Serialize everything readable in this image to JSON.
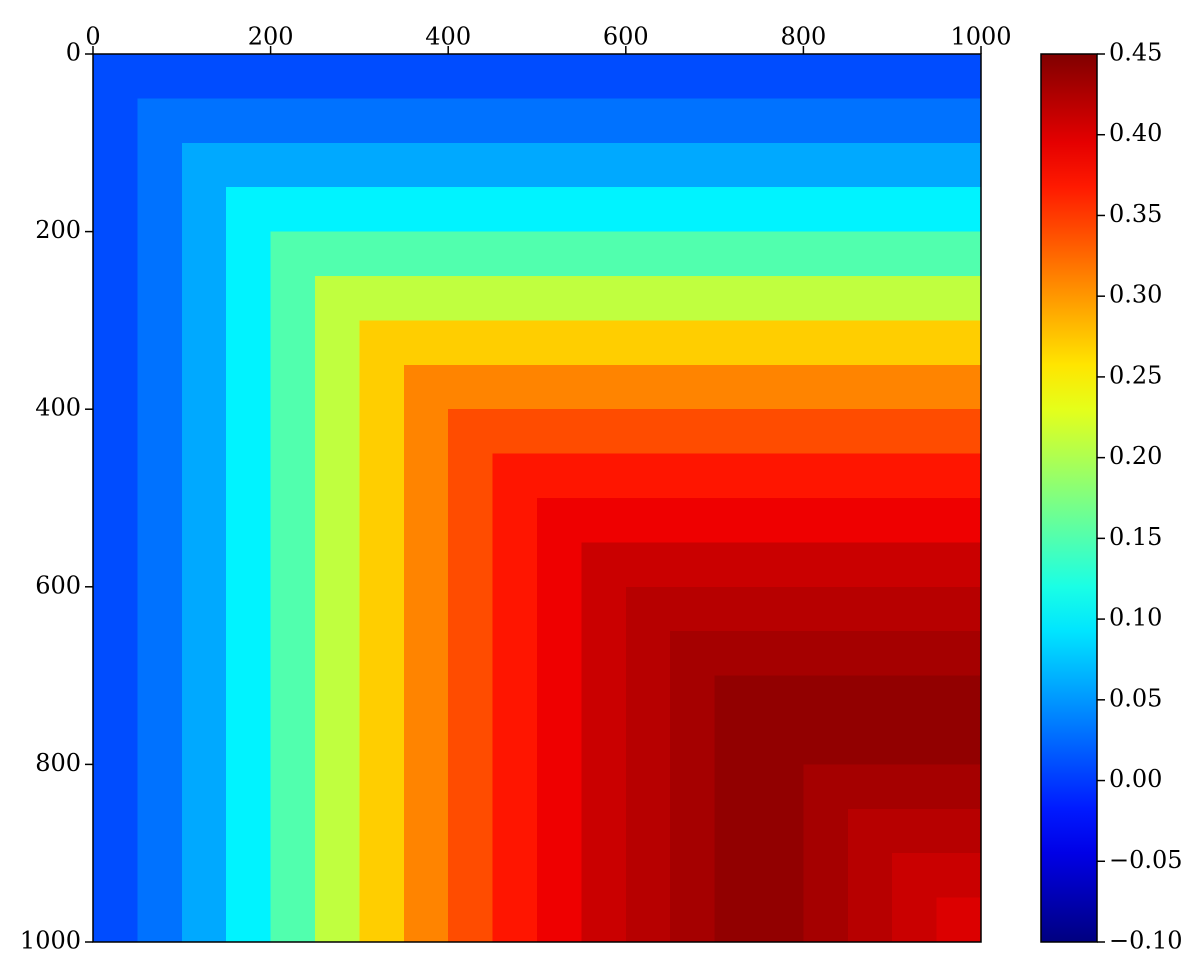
{
  "chart_data": {
    "type": "heatmap",
    "colormap": "jet",
    "xlim": [
      0,
      1000
    ],
    "ylim": [
      0,
      1000
    ],
    "xticks": [
      0,
      200,
      400,
      600,
      800,
      1000
    ],
    "yticks": [
      0,
      200,
      400,
      600,
      800,
      1000
    ],
    "y_inverted": true,
    "clim": [
      -0.1,
      0.45
    ],
    "cticks": [
      {
        "value": -0.1,
        "label": "−0.10"
      },
      {
        "value": -0.05,
        "label": "−0.05"
      },
      {
        "value": 0.0,
        "label": "0.00"
      },
      0.05,
      {
        "value": 0.1,
        "label": "0.10"
      },
      0.15,
      {
        "value": 0.2,
        "label": "0.20"
      },
      0.25,
      {
        "value": 0.3,
        "label": "0.30"
      },
      0.35,
      {
        "value": 0.4,
        "label": "0.40"
      },
      0.45
    ],
    "z": [
      [
        0.01,
        0.01,
        0.01,
        0.01,
        0.01,
        0.01,
        0.01,
        0.01,
        0.01,
        0.01,
        0.01,
        0.01,
        0.01,
        0.01,
        0.01,
        0.01,
        0.01,
        0.01,
        0.01,
        0.01
      ],
      [
        0.01,
        0.03,
        0.03,
        0.03,
        0.03,
        0.03,
        0.03,
        0.03,
        0.03,
        0.03,
        0.03,
        0.03,
        0.03,
        0.03,
        0.03,
        0.03,
        0.03,
        0.03,
        0.03,
        0.03
      ],
      [
        0.01,
        0.03,
        0.06,
        0.06,
        0.06,
        0.06,
        0.06,
        0.06,
        0.06,
        0.06,
        0.06,
        0.06,
        0.06,
        0.06,
        0.06,
        0.06,
        0.06,
        0.06,
        0.06,
        0.06
      ],
      [
        0.01,
        0.03,
        0.06,
        0.1,
        0.1,
        0.1,
        0.1,
        0.1,
        0.1,
        0.1,
        0.1,
        0.1,
        0.1,
        0.1,
        0.1,
        0.1,
        0.1,
        0.1,
        0.1,
        0.1
      ],
      [
        0.01,
        0.03,
        0.06,
        0.1,
        0.15,
        0.15,
        0.15,
        0.15,
        0.15,
        0.15,
        0.15,
        0.15,
        0.15,
        0.15,
        0.15,
        0.15,
        0.15,
        0.15,
        0.15,
        0.15
      ],
      [
        0.01,
        0.03,
        0.06,
        0.1,
        0.15,
        0.21,
        0.21,
        0.21,
        0.21,
        0.21,
        0.21,
        0.21,
        0.21,
        0.21,
        0.21,
        0.21,
        0.21,
        0.21,
        0.21,
        0.21
      ],
      [
        0.01,
        0.03,
        0.06,
        0.1,
        0.15,
        0.21,
        0.27,
        0.27,
        0.27,
        0.27,
        0.27,
        0.27,
        0.27,
        0.27,
        0.27,
        0.27,
        0.27,
        0.27,
        0.27,
        0.27
      ],
      [
        0.01,
        0.03,
        0.06,
        0.1,
        0.15,
        0.21,
        0.27,
        0.31,
        0.31,
        0.31,
        0.31,
        0.31,
        0.31,
        0.31,
        0.31,
        0.31,
        0.31,
        0.31,
        0.31,
        0.31
      ],
      [
        0.01,
        0.03,
        0.06,
        0.1,
        0.15,
        0.21,
        0.27,
        0.31,
        0.34,
        0.34,
        0.34,
        0.34,
        0.34,
        0.34,
        0.34,
        0.34,
        0.34,
        0.34,
        0.34,
        0.34
      ],
      [
        0.01,
        0.03,
        0.06,
        0.1,
        0.15,
        0.21,
        0.27,
        0.31,
        0.34,
        0.37,
        0.37,
        0.37,
        0.37,
        0.37,
        0.37,
        0.37,
        0.37,
        0.37,
        0.37,
        0.37
      ],
      [
        0.01,
        0.03,
        0.06,
        0.1,
        0.15,
        0.21,
        0.27,
        0.31,
        0.34,
        0.37,
        0.39,
        0.39,
        0.39,
        0.39,
        0.39,
        0.39,
        0.39,
        0.39,
        0.39,
        0.39
      ],
      [
        0.01,
        0.03,
        0.06,
        0.1,
        0.15,
        0.21,
        0.27,
        0.31,
        0.34,
        0.37,
        0.39,
        0.41,
        0.41,
        0.41,
        0.41,
        0.41,
        0.41,
        0.41,
        0.41,
        0.41
      ],
      [
        0.01,
        0.03,
        0.06,
        0.1,
        0.15,
        0.21,
        0.27,
        0.31,
        0.34,
        0.37,
        0.39,
        0.41,
        0.42,
        0.42,
        0.42,
        0.42,
        0.42,
        0.42,
        0.42,
        0.42
      ],
      [
        0.01,
        0.03,
        0.06,
        0.1,
        0.15,
        0.21,
        0.27,
        0.31,
        0.34,
        0.37,
        0.39,
        0.41,
        0.42,
        0.43,
        0.43,
        0.43,
        0.43,
        0.43,
        0.43,
        0.43
      ],
      [
        0.01,
        0.03,
        0.06,
        0.1,
        0.15,
        0.21,
        0.27,
        0.31,
        0.34,
        0.37,
        0.39,
        0.41,
        0.42,
        0.43,
        0.44,
        0.44,
        0.44,
        0.44,
        0.44,
        0.44
      ],
      [
        0.01,
        0.03,
        0.06,
        0.1,
        0.15,
        0.21,
        0.27,
        0.31,
        0.34,
        0.37,
        0.39,
        0.41,
        0.42,
        0.43,
        0.44,
        0.44,
        0.44,
        0.44,
        0.44,
        0.44
      ],
      [
        0.01,
        0.03,
        0.06,
        0.1,
        0.15,
        0.21,
        0.27,
        0.31,
        0.34,
        0.37,
        0.39,
        0.41,
        0.42,
        0.43,
        0.44,
        0.44,
        0.43,
        0.43,
        0.43,
        0.43
      ],
      [
        0.01,
        0.03,
        0.06,
        0.1,
        0.15,
        0.21,
        0.27,
        0.31,
        0.34,
        0.37,
        0.39,
        0.41,
        0.42,
        0.43,
        0.44,
        0.44,
        0.43,
        0.42,
        0.42,
        0.42
      ],
      [
        0.01,
        0.03,
        0.06,
        0.1,
        0.15,
        0.21,
        0.27,
        0.31,
        0.34,
        0.37,
        0.39,
        0.41,
        0.42,
        0.43,
        0.44,
        0.44,
        0.43,
        0.42,
        0.41,
        0.41
      ],
      [
        0.01,
        0.03,
        0.06,
        0.1,
        0.15,
        0.21,
        0.27,
        0.31,
        0.34,
        0.37,
        0.39,
        0.41,
        0.42,
        0.43,
        0.44,
        0.44,
        0.43,
        0.42,
        0.41,
        0.4
      ]
    ]
  }
}
